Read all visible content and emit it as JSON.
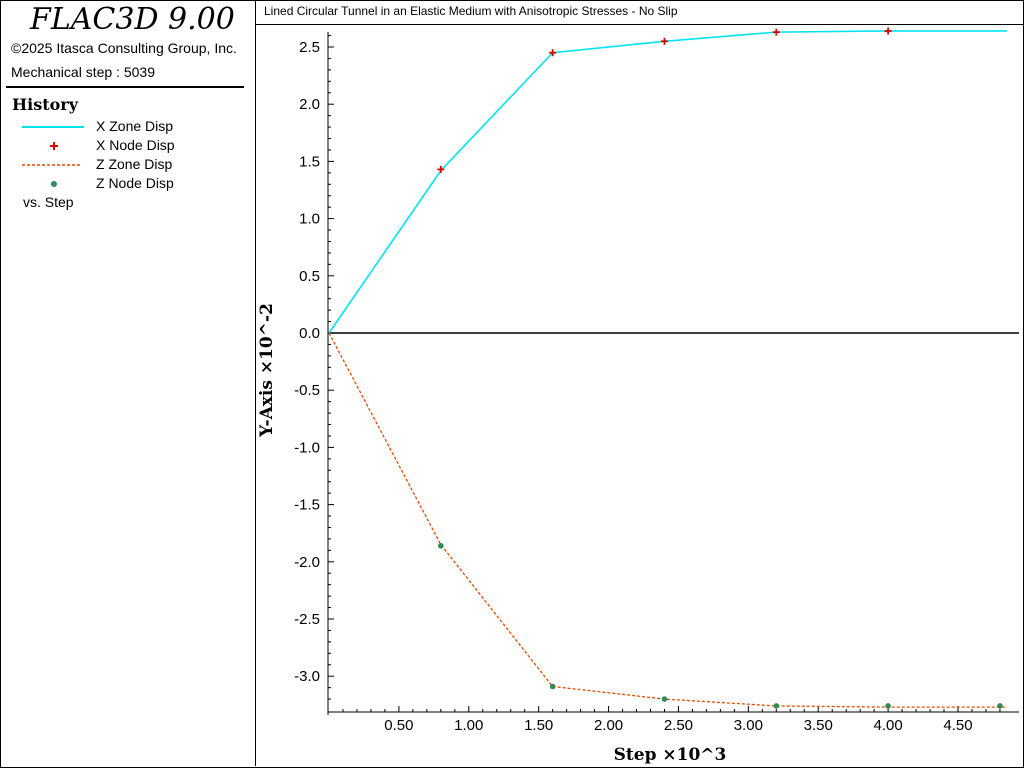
{
  "app": {
    "title": "FLAC3D 9.00",
    "copyright": "©2025 Itasca Consulting Group, Inc.",
    "mechanical_step": "Mechanical step : 5039"
  },
  "legend": {
    "title": "History",
    "items": [
      {
        "label": "X Zone Disp",
        "style": "solid-line",
        "color": "#00e5ee"
      },
      {
        "label": "X Node Disp",
        "style": "plus-marker",
        "color": "#dd0000"
      },
      {
        "label": "Z Zone Disp",
        "style": "dashed-line",
        "color": "#e64a00"
      },
      {
        "label": "Z Node Disp",
        "style": "dot-marker",
        "color": "#2e8b57"
      }
    ],
    "vs": "vs. Step"
  },
  "chart_data": {
    "type": "line",
    "title": "Lined Circular Tunnel in an Elastic Medium with Anisotropic Stresses - No Slip",
    "xlabel": "Step ×10^3",
    "ylabel": "Y-Axis ×10^-2",
    "xlim": [
      0,
      4.85
    ],
    "ylim": [
      -3.27,
      2.66
    ],
    "xticks": [
      0.5,
      1.0,
      1.5,
      2.0,
      2.5,
      3.0,
      3.5,
      4.0,
      4.5
    ],
    "xtick_labels": [
      "0.50",
      "1.00",
      "1.50",
      "2.00",
      "2.50",
      "3.00",
      "3.50",
      "4.00",
      "4.50"
    ],
    "yticks": [
      2.5,
      2.0,
      1.5,
      1.0,
      0.5,
      0.0,
      -0.5,
      -1.0,
      -1.5,
      -2.0,
      -2.5,
      -3.0
    ],
    "ytick_labels": [
      "2.5",
      "2.0",
      "1.5",
      "1.0",
      "0.5",
      "0.0",
      "-0.5",
      "-1.0",
      "-1.5",
      "-2.0",
      "-2.5",
      "-3.0"
    ],
    "series": [
      {
        "name": "X Zone Disp",
        "style": "line",
        "color": "#00e5ee",
        "x": [
          0,
          0.8,
          1.6,
          2.4,
          3.2,
          4.0,
          4.85
        ],
        "y": [
          0,
          1.42,
          2.45,
          2.55,
          2.63,
          2.64,
          2.64
        ]
      },
      {
        "name": "X Node Disp",
        "style": "plus",
        "color": "#dd0000",
        "x": [
          0.8,
          1.6,
          2.4,
          3.2,
          4.0
        ],
        "y": [
          1.43,
          2.45,
          2.55,
          2.63,
          2.64
        ]
      },
      {
        "name": "Z Zone Disp",
        "style": "dashed",
        "color": "#e64a00",
        "x": [
          0,
          0.8,
          1.6,
          2.4,
          3.2,
          4.0,
          4.85
        ],
        "y": [
          0,
          -1.85,
          -3.09,
          -3.2,
          -3.26,
          -3.27,
          -3.27
        ]
      },
      {
        "name": "Z Node Disp",
        "style": "dot",
        "color": "#2e8b57",
        "x": [
          0.8,
          1.6,
          2.4,
          3.2,
          4.0,
          4.8
        ],
        "y": [
          -1.86,
          -3.09,
          -3.2,
          -3.26,
          -3.26,
          -3.26
        ]
      }
    ]
  }
}
